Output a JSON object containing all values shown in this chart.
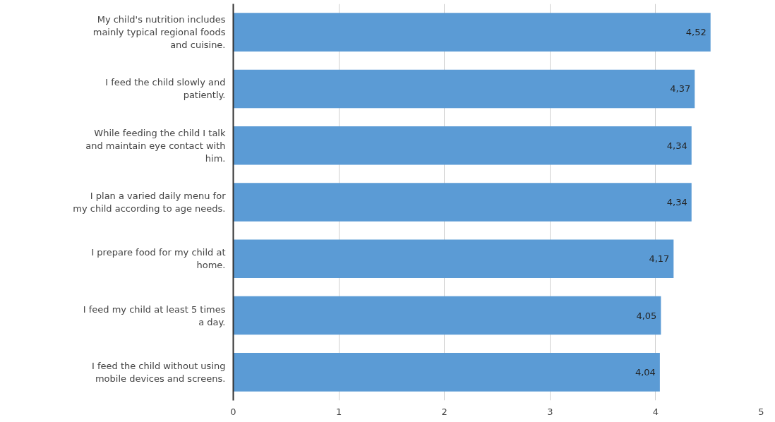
{
  "chart_data": {
    "type": "bar",
    "orientation": "horizontal",
    "categories": [
      "My child's nutrition includes mainly typical regional foods and cuisine.",
      "I feed the child slowly and patiently.",
      "While feeding the child I talk and maintain eye contact with him.",
      "I plan a varied daily menu for my child according to age needs.",
      "I prepare food for my child at home.",
      "I feed my child at least 5 times a day.",
      "I feed the child without using mobile devices and screens."
    ],
    "values": [
      4.52,
      4.37,
      4.34,
      4.34,
      4.17,
      4.05,
      4.04
    ],
    "value_labels": [
      "4,52",
      "4,37",
      "4,34",
      "4,34",
      "4,17",
      "4,05",
      "4,04"
    ],
    "color": "#5b9bd5",
    "xlim": [
      0,
      5
    ],
    "xticks": [
      0,
      1,
      2,
      3,
      4,
      5
    ],
    "grid": "x"
  }
}
